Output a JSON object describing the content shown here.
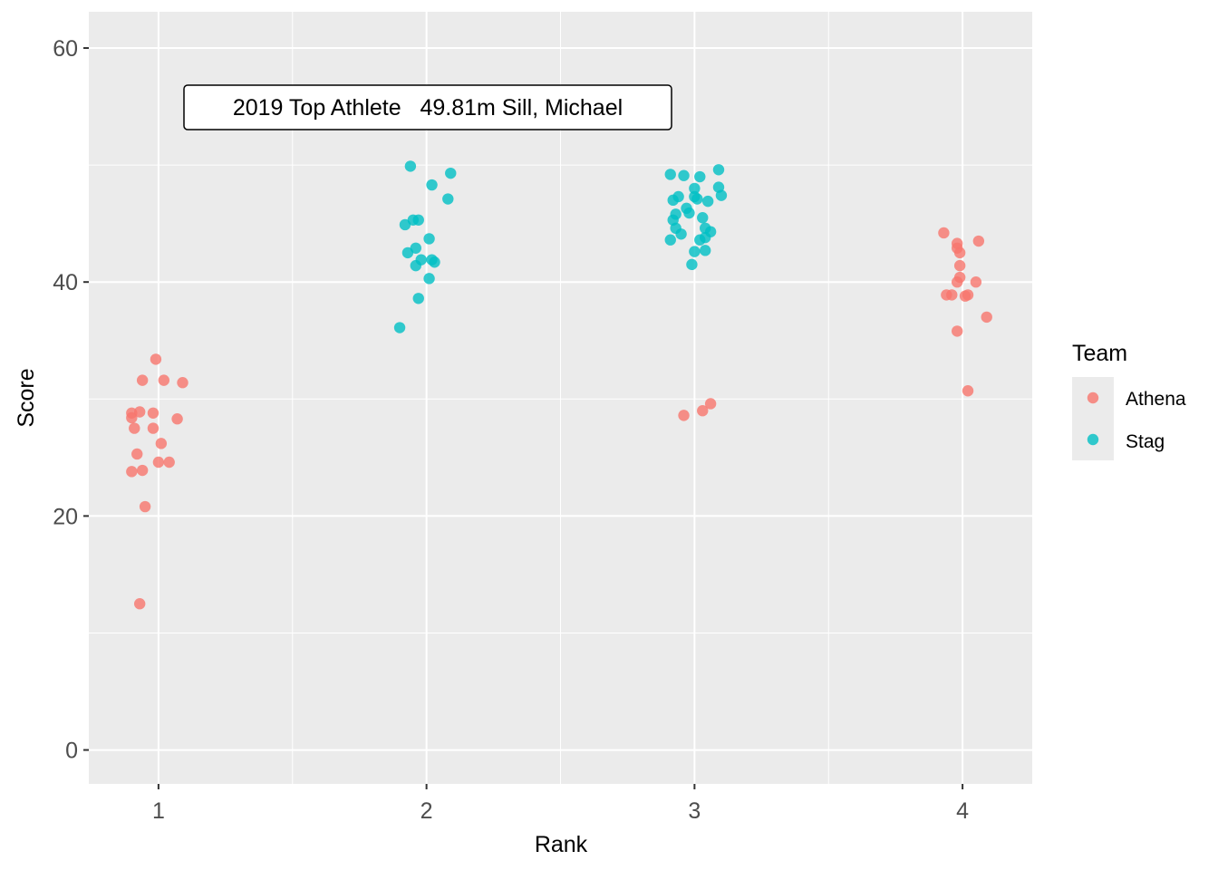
{
  "chart_data": {
    "type": "scatter",
    "xlabel": "Rank",
    "ylabel": "Score",
    "x_ticks": [
      1,
      2,
      3,
      4
    ],
    "y_ticks": [
      0,
      20,
      40,
      60
    ],
    "xlim": [
      0.74,
      4.26
    ],
    "ylim": [
      -2.9,
      63.1
    ],
    "grid": true,
    "legend": {
      "title": "Team",
      "placement": "right",
      "entries": [
        {
          "name": "Athena",
          "color": "#F8766D"
        },
        {
          "name": "Stag",
          "color": "#00BFC4"
        }
      ]
    },
    "annotation": {
      "text": "2019 Top Athlete   49.81m Sill, Michael",
      "x": 1.98,
      "y": 54.8
    },
    "series": [
      {
        "name": "Athena",
        "color": "#F8766D",
        "points": [
          [
            0.99,
            33.4
          ],
          [
            0.94,
            31.6
          ],
          [
            1.02,
            31.6
          ],
          [
            1.09,
            31.4
          ],
          [
            0.9,
            28.8
          ],
          [
            0.9,
            28.4
          ],
          [
            0.93,
            28.9
          ],
          [
            0.98,
            28.8
          ],
          [
            1.07,
            28.3
          ],
          [
            0.91,
            27.5
          ],
          [
            0.98,
            27.5
          ],
          [
            1.01,
            26.2
          ],
          [
            0.92,
            25.3
          ],
          [
            1.0,
            24.6
          ],
          [
            1.04,
            24.6
          ],
          [
            0.9,
            23.8
          ],
          [
            0.94,
            23.9
          ],
          [
            0.95,
            20.8
          ],
          [
            0.93,
            12.5
          ],
          [
            2.96,
            28.6
          ],
          [
            3.03,
            29.0
          ],
          [
            3.06,
            29.6
          ],
          [
            3.93,
            44.2
          ],
          [
            3.98,
            43.3
          ],
          [
            3.98,
            42.9
          ],
          [
            4.06,
            43.5
          ],
          [
            3.99,
            42.5
          ],
          [
            3.99,
            41.4
          ],
          [
            3.99,
            40.4
          ],
          [
            3.98,
            40.0
          ],
          [
            4.05,
            40.0
          ],
          [
            3.94,
            38.9
          ],
          [
            3.96,
            38.9
          ],
          [
            4.01,
            38.8
          ],
          [
            4.02,
            38.9
          ],
          [
            4.09,
            37.0
          ],
          [
            3.98,
            35.8
          ],
          [
            4.02,
            30.7
          ]
        ]
      },
      {
        "name": "Stag",
        "color": "#00BFC4",
        "points": [
          [
            1.94,
            49.9
          ],
          [
            2.09,
            49.3
          ],
          [
            2.02,
            48.3
          ],
          [
            2.08,
            47.1
          ],
          [
            1.95,
            45.3
          ],
          [
            1.97,
            45.3
          ],
          [
            1.92,
            44.9
          ],
          [
            2.01,
            43.7
          ],
          [
            1.96,
            42.9
          ],
          [
            1.93,
            42.5
          ],
          [
            1.98,
            41.9
          ],
          [
            2.02,
            41.9
          ],
          [
            2.03,
            41.7
          ],
          [
            1.96,
            41.4
          ],
          [
            2.01,
            40.3
          ],
          [
            1.97,
            38.6
          ],
          [
            1.9,
            36.1
          ],
          [
            2.91,
            49.2
          ],
          [
            2.96,
            49.1
          ],
          [
            3.02,
            49.0
          ],
          [
            3.09,
            49.6
          ],
          [
            3.0,
            48.0
          ],
          [
            3.09,
            48.1
          ],
          [
            3.1,
            47.4
          ],
          [
            2.92,
            47.0
          ],
          [
            2.94,
            47.3
          ],
          [
            3.0,
            47.3
          ],
          [
            3.01,
            47.1
          ],
          [
            3.05,
            46.9
          ],
          [
            2.97,
            46.3
          ],
          [
            2.98,
            45.9
          ],
          [
            2.93,
            45.8
          ],
          [
            3.03,
            45.5
          ],
          [
            2.92,
            45.3
          ],
          [
            2.93,
            44.6
          ],
          [
            2.95,
            44.1
          ],
          [
            3.04,
            44.6
          ],
          [
            3.06,
            44.3
          ],
          [
            2.91,
            43.6
          ],
          [
            3.02,
            43.6
          ],
          [
            3.04,
            43.8
          ],
          [
            3.0,
            42.6
          ],
          [
            3.04,
            42.7
          ],
          [
            2.99,
            41.5
          ]
        ]
      }
    ]
  }
}
